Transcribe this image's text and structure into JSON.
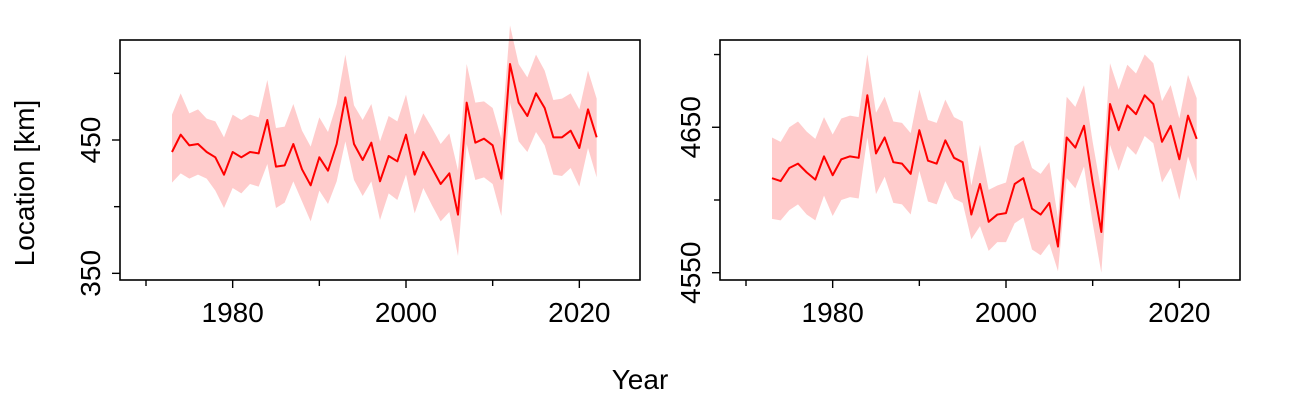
{
  "figure": {
    "ylabel": "Location [km]",
    "xlabel": "Year"
  },
  "colors": {
    "line": "#ff0000",
    "band": "#ffcccc",
    "axis": "#000000"
  },
  "chart_data": [
    {
      "type": "line",
      "xlim": [
        1967,
        2027
      ],
      "ylim": [
        345,
        525
      ],
      "xticks_labeled": [
        1980,
        2000,
        2020
      ],
      "xticks_minor": [
        1970,
        1990,
        2010
      ],
      "yticks_labeled": [
        350,
        450
      ],
      "yticks_minor": [
        400,
        500
      ],
      "x": [
        1973,
        1974,
        1975,
        1976,
        1977,
        1978,
        1979,
        1980,
        1981,
        1982,
        1983,
        1984,
        1985,
        1986,
        1987,
        1988,
        1989,
        1990,
        1991,
        1992,
        1993,
        1994,
        1995,
        1996,
        1997,
        1998,
        1999,
        2000,
        2001,
        2002,
        2003,
        2004,
        2005,
        2006,
        2007,
        2008,
        2009,
        2010,
        2011,
        2012,
        2013,
        2014,
        2015,
        2016,
        2017,
        2018,
        2019,
        2020,
        2021,
        2022
      ],
      "series": [
        {
          "values": [
            441,
            454,
            446,
            447,
            441,
            437,
            424,
            441,
            437,
            441,
            440,
            465,
            430,
            431,
            447,
            428,
            416,
            437,
            427,
            447,
            482,
            447,
            435,
            448,
            419,
            438,
            434,
            454,
            424,
            441,
            429,
            417,
            425,
            394,
            478,
            448,
            451,
            446,
            421,
            507,
            478,
            468,
            485,
            474,
            452,
            452,
            457,
            444,
            473,
            452
          ],
          "lower": [
            418,
            425,
            421,
            424,
            421,
            412,
            399,
            414,
            410,
            417,
            415,
            432,
            399,
            403,
            419,
            404,
            389,
            412,
            402,
            419,
            449,
            420,
            408,
            419,
            390,
            410,
            405,
            424,
            395,
            414,
            401,
            389,
            396,
            363,
            447,
            420,
            422,
            417,
            393,
            478,
            449,
            441,
            456,
            446,
            424,
            423,
            429,
            415,
            444,
            422
          ],
          "upper": [
            469,
            485,
            470,
            473,
            466,
            464,
            452,
            469,
            465,
            469,
            467,
            495,
            459,
            460,
            477,
            457,
            445,
            467,
            456,
            477,
            514,
            476,
            465,
            477,
            449,
            468,
            464,
            484,
            454,
            470,
            459,
            447,
            455,
            427,
            507,
            478,
            479,
            474,
            451,
            536,
            507,
            497,
            514,
            502,
            480,
            481,
            485,
            473,
            502,
            481
          ]
        }
      ]
    },
    {
      "type": "line",
      "xlim": [
        1967,
        2027
      ],
      "ylim": [
        4545,
        4710
      ],
      "xticks_labeled": [
        1980,
        2000,
        2020
      ],
      "xticks_minor": [
        1970,
        1990,
        2010
      ],
      "yticks_labeled": [
        4550,
        4650
      ],
      "yticks_minor": [
        4600,
        4700
      ],
      "x": [
        1973,
        1974,
        1975,
        1976,
        1977,
        1978,
        1979,
        1980,
        1981,
        1982,
        1983,
        1984,
        1985,
        1986,
        1987,
        1988,
        1989,
        1990,
        1991,
        1992,
        1993,
        1994,
        1995,
        1996,
        1997,
        1998,
        1999,
        2000,
        2001,
        2002,
        2003,
        2004,
        2005,
        2006,
        2007,
        2008,
        2009,
        2010,
        2011,
        2012,
        2013,
        2014,
        2015,
        2016,
        2017,
        2018,
        2019,
        2020,
        2021,
        2022
      ],
      "series": [
        {
          "values": [
            4615,
            4613,
            4622,
            4625,
            4619,
            4614,
            4630,
            4617,
            4628,
            4630,
            4629,
            4672,
            4632,
            4643,
            4626,
            4625,
            4618,
            4648,
            4627,
            4625,
            4641,
            4629,
            4626,
            4590,
            4611,
            4585,
            4590,
            4591,
            4611,
            4615,
            4594,
            4590,
            4598,
            4568,
            4643,
            4636,
            4651,
            4612,
            4578,
            4666,
            4648,
            4665,
            4659,
            4672,
            4666,
            4640,
            4651,
            4628,
            4658,
            4642
          ],
          "lower": [
            4587,
            4586,
            4593,
            4597,
            4590,
            4586,
            4603,
            4589,
            4600,
            4602,
            4601,
            4643,
            4604,
            4616,
            4598,
            4597,
            4590,
            4620,
            4599,
            4597,
            4613,
            4601,
            4598,
            4573,
            4582,
            4565,
            4571,
            4571,
            4584,
            4588,
            4566,
            4562,
            4570,
            4551,
            4615,
            4608,
            4623,
            4584,
            4550,
            4638,
            4620,
            4637,
            4631,
            4644,
            4639,
            4612,
            4622,
            4600,
            4630,
            4613
          ],
          "upper": [
            4643,
            4640,
            4650,
            4654,
            4647,
            4642,
            4657,
            4645,
            4656,
            4658,
            4657,
            4700,
            4660,
            4671,
            4654,
            4653,
            4646,
            4676,
            4655,
            4653,
            4669,
            4657,
            4654,
            4610,
            4638,
            4607,
            4610,
            4612,
            4637,
            4641,
            4622,
            4618,
            4626,
            4587,
            4671,
            4664,
            4679,
            4640,
            4606,
            4694,
            4676,
            4693,
            4687,
            4700,
            4694,
            4668,
            4679,
            4656,
            4686,
            4670
          ]
        }
      ]
    }
  ]
}
